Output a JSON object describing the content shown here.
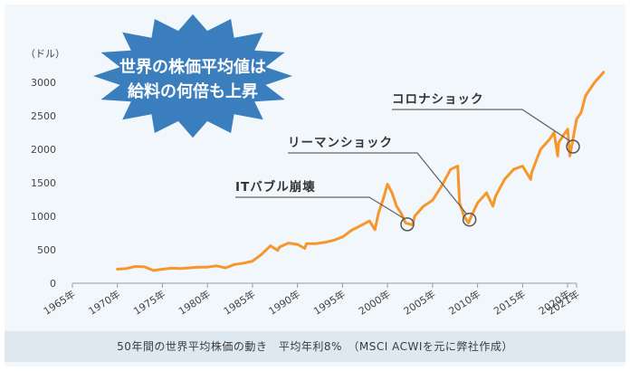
{
  "chart_data": {
    "type": "line",
    "title": "世界の株価平均値は給料の何倍も上昇",
    "title_lines": [
      "世界の株価平均値は",
      "給料の何倍も上昇"
    ],
    "ylabel": "（ドル）",
    "ylim": [
      0,
      3000
    ],
    "yticks": [
      0,
      500,
      1000,
      1500,
      2000,
      2500,
      3000
    ],
    "xlim": [
      1965,
      2021
    ],
    "xticks": [
      1965,
      1970,
      1975,
      1980,
      1985,
      1990,
      1995,
      2000,
      2005,
      2010,
      2015,
      2020,
      2021
    ],
    "xtick_labels": [
      "1965年",
      "1970年",
      "1975年",
      "1980年",
      "1985年",
      "1990年",
      "1995年",
      "2000年",
      "2005年",
      "2010年",
      "2015年",
      "2020年",
      "2021年"
    ],
    "grid": false,
    "series": [
      {
        "color": "#f7962b",
        "x": [
          1970,
          1971,
          1972,
          1973,
          1974,
          1975,
          1976,
          1977,
          1978,
          1979,
          1980,
          1981,
          1982,
          1983,
          1984,
          1985,
          1986,
          1987,
          1987.8,
          1988,
          1989,
          1990,
          1990.8,
          1991,
          1992,
          1993,
          1994,
          1995,
          1996,
          1997,
          1998,
          1998.6,
          1999,
          1999.5,
          2000,
          2000.5,
          2001,
          2001.5,
          2002,
          2002.8,
          2003,
          2004,
          2005,
          2006,
          2007,
          2007.8,
          2008,
          2008.5,
          2009,
          2009.3,
          2010,
          2011,
          2011.7,
          2012,
          2013,
          2014,
          2015,
          2015.9,
          2016,
          2017,
          2018,
          2018.5,
          2018.9,
          2019,
          2019.5,
          2020,
          2020.25,
          2020.6,
          2021,
          2021.5,
          2022,
          2023,
          2024
        ],
        "y": [
          210,
          220,
          250,
          245,
          190,
          210,
          225,
          220,
          230,
          240,
          240,
          260,
          230,
          280,
          300,
          330,
          430,
          560,
          490,
          540,
          600,
          580,
          520,
          590,
          590,
          610,
          640,
          690,
          790,
          860,
          930,
          800,
          1050,
          1250,
          1480,
          1350,
          1150,
          1050,
          900,
          870,
          1000,
          1150,
          1240,
          1450,
          1700,
          1750,
          1200,
          1000,
          900,
          1000,
          1200,
          1350,
          1150,
          1300,
          1550,
          1700,
          1750,
          1550,
          1650,
          2000,
          2150,
          2250,
          1900,
          2100,
          2200,
          2300,
          1900,
          2150,
          2450,
          2550,
          2800,
          3000,
          3150
        ]
      }
    ],
    "annotations": [
      {
        "label": "ITバブル崩壊",
        "x": 2002.2,
        "y": 880
      },
      {
        "label": "リーマンショック",
        "x": 2009.1,
        "y": 950
      },
      {
        "label": "コロナショック",
        "x": 2020.6,
        "y": 2040
      }
    ]
  },
  "caption": "50年間の世界平均株価の動き　平均年利8%　（MSCI ACWIを元に弊社作成）",
  "colors": {
    "line": "#f7962b",
    "burst": "#3a7ebd",
    "panel": "#f2f7fb",
    "caption_bg": "#dde8f1"
  }
}
